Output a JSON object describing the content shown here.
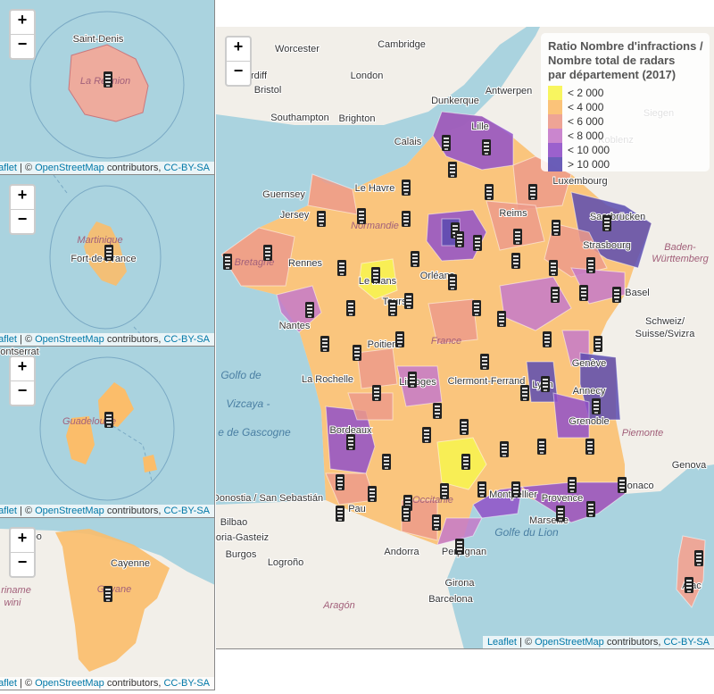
{
  "zoom": {
    "zoom_in": "+",
    "zoom_out": "−"
  },
  "attribution": {
    "leaflet": "Leaflet",
    "separator": "| ©",
    "osm": "OpenStreetMap",
    "rest": "contributors,",
    "license": "CC-BY-SA"
  },
  "insets": [
    {
      "labels": [
        "Saint-Denis",
        "La Réunion"
      ]
    },
    {
      "labels": [
        "Martinique",
        "Fort-de-France"
      ]
    },
    {
      "labels": [
        "ontserrat",
        "Guadeloupe"
      ]
    },
    {
      "labels": [
        "maribo",
        "Cayenne",
        "Guyane",
        "riname",
        "wini"
      ]
    }
  ],
  "main_map": {
    "legend": {
      "title_lines": [
        "Ratio Nombre d'infractions /",
        "Nombre total de radars",
        "par département (2017)"
      ],
      "items": [
        {
          "label": "< 2 000",
          "color": "#f7f44e"
        },
        {
          "label": "< 4 000",
          "color": "#fbbd6a"
        },
        {
          "label": "< 6 000",
          "color": "#ec9a8a"
        },
        {
          "label": "< 8 000",
          "color": "#c479c9"
        },
        {
          "label": "< 10 000",
          "color": "#9050c8"
        },
        {
          "label": "> 10 000",
          "color": "#5a4bb0"
        }
      ]
    },
    "labels": [
      "Worcester",
      "Cambridge",
      "Cardiff",
      "Bristol",
      "London",
      "Southampton",
      "Brighton",
      "Dunkerque",
      "Lille",
      "Calais",
      "Antwerpen",
      "Guernsey",
      "Jersey",
      "Le Havre",
      "Reims",
      "Luxembourg",
      "Koblenz",
      "Siegen",
      "Saarbrücken",
      "Strasbourg",
      "Rennes",
      "Le Mans",
      "Orléans",
      "Tours",
      "Nantes",
      "Basel",
      "Poitiers",
      "France",
      "La Rochelle",
      "Limoges",
      "Clermont-Ferrand",
      "Lyon",
      "Genève",
      "Annecy",
      "Grenoble",
      "Bordeaux",
      "Montpellier",
      "Provence",
      "Marseille",
      "Monaco",
      "Genova",
      "Golfo de",
      "Vizcaya -",
      "e de Gascogne",
      "Donostia / San Sebastián",
      "Bilbao",
      "toria-Gasteiz",
      "Burgos",
      "Logroño",
      "Pau",
      "Andorra",
      "Perpignan",
      "Girona",
      "Barcelona",
      "Aragón",
      "Golfe du Lion",
      "Ajac",
      "Baden-",
      "Württemberg",
      "Schweiz/",
      "Suisse/Svizra",
      "Piemonte",
      "Bretagne",
      "Normandie",
      "Occitanie"
    ]
  }
}
